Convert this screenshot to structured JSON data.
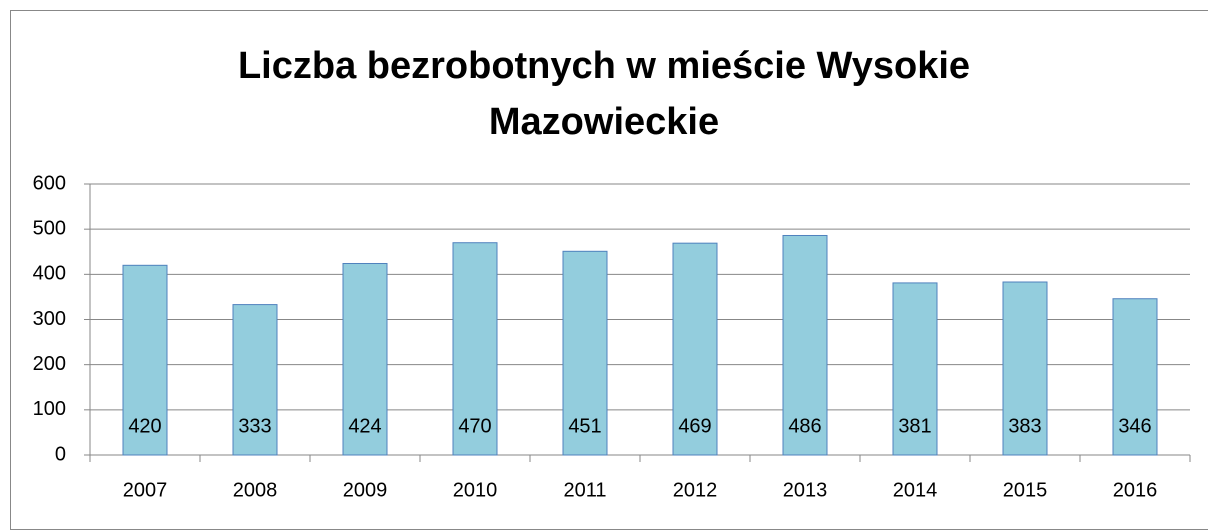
{
  "chart_data": {
    "type": "bar",
    "title": "Liczba bezrobotnych w mieście Wysokie Mazowieckie",
    "categories": [
      "2007",
      "2008",
      "2009",
      "2010",
      "2011",
      "2012",
      "2013",
      "2014",
      "2015",
      "2016"
    ],
    "values": [
      420,
      333,
      424,
      470,
      451,
      469,
      486,
      381,
      383,
      346
    ],
    "color": "#93cddd",
    "ylim": [
      0,
      600
    ],
    "yticks": [
      0,
      100,
      200,
      300,
      400,
      500,
      600
    ],
    "grid": true
  }
}
